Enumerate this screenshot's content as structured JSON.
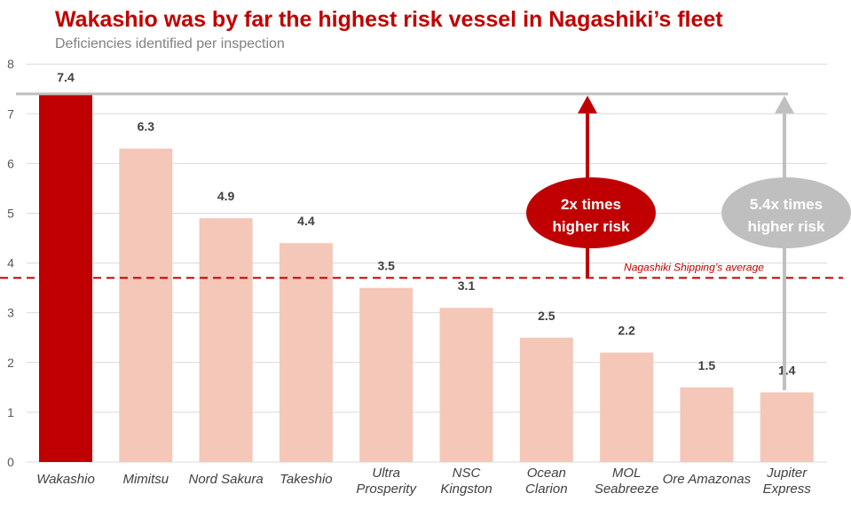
{
  "chart_data": {
    "type": "bar",
    "title": "Wakashio was by far the highest risk vessel in Nagashiki’s fleet",
    "subtitle": "Deficiencies identified per inspection",
    "categories": [
      [
        "Wakashio"
      ],
      [
        "Mimitsu"
      ],
      [
        "Nord Sakura"
      ],
      [
        "Takeshio"
      ],
      [
        "Ultra",
        "Prosperity"
      ],
      [
        "NSC",
        "Kingston"
      ],
      [
        "Ocean",
        "Clarion"
      ],
      [
        "MOL",
        "Seabreeze"
      ],
      [
        "Ore Amazonas"
      ],
      [
        "Jupiter",
        "Express"
      ]
    ],
    "values": [
      7.4,
      6.3,
      4.9,
      4.4,
      3.5,
      3.1,
      2.5,
      2.2,
      1.5,
      1.4
    ],
    "value_labels": [
      "7.4",
      "6.3",
      "4.9",
      "4.4",
      "3.5",
      "3.1",
      "2.5",
      "2.2",
      "1.5",
      "1.4"
    ],
    "yticks": [
      "0",
      "1",
      "2",
      "3",
      "4",
      "5",
      "6",
      "7",
      "8"
    ],
    "ylim": [
      0,
      8
    ],
    "grid": true,
    "average": {
      "value": 3.7,
      "label": "Nagashiki Shipping’s average"
    },
    "annotations": [
      {
        "lines": [
          "2x times",
          "higher risk"
        ],
        "color": "#c00000"
      },
      {
        "lines": [
          "5.4x times",
          "higher risk"
        ],
        "color": "#bfbfbf"
      }
    ],
    "colors": {
      "highlight": "#c00000",
      "bar": "#f4c7b8",
      "title": "#c00000",
      "grid": "#d9d9d9"
    }
  }
}
